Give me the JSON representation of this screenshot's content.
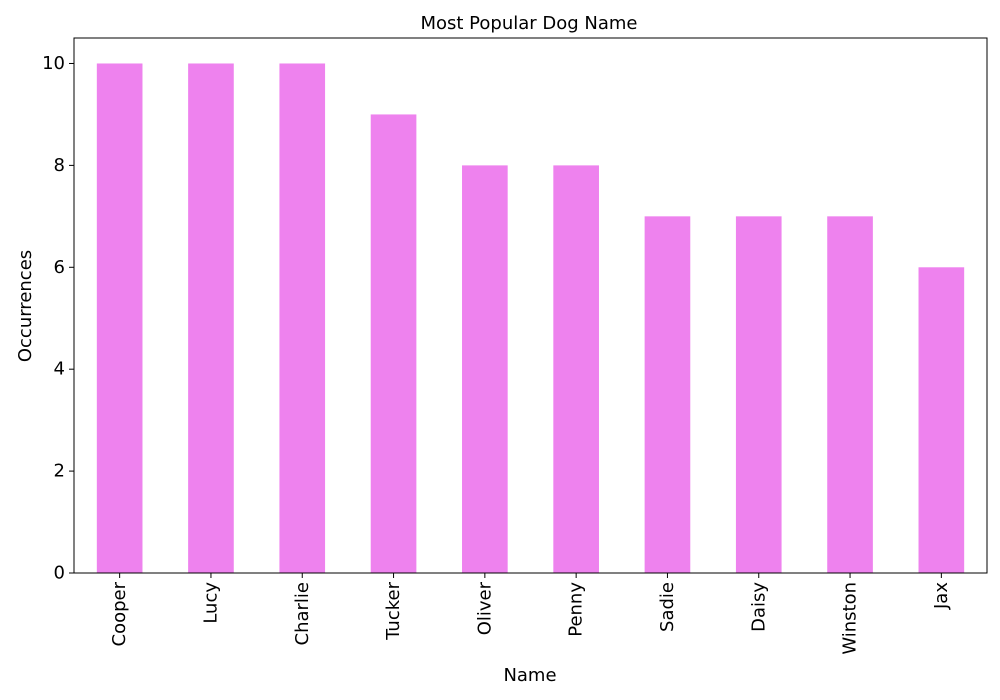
{
  "chart_data": {
    "type": "bar",
    "title": "Most Popular Dog Name",
    "xlabel": "Name",
    "ylabel": "Occurrences",
    "categories": [
      "Cooper",
      "Lucy",
      "Charlie",
      "Tucker",
      "Oliver",
      "Penny",
      "Sadie",
      "Daisy",
      "Winston",
      "Jax"
    ],
    "values": [
      10,
      10,
      10,
      9,
      8,
      8,
      7,
      7,
      7,
      6
    ],
    "ylim": [
      0,
      10.5
    ],
    "yticks": [
      0,
      2,
      4,
      6,
      8,
      10
    ],
    "bar_color": "#ee82ee",
    "grid": false,
    "legend": "none"
  }
}
